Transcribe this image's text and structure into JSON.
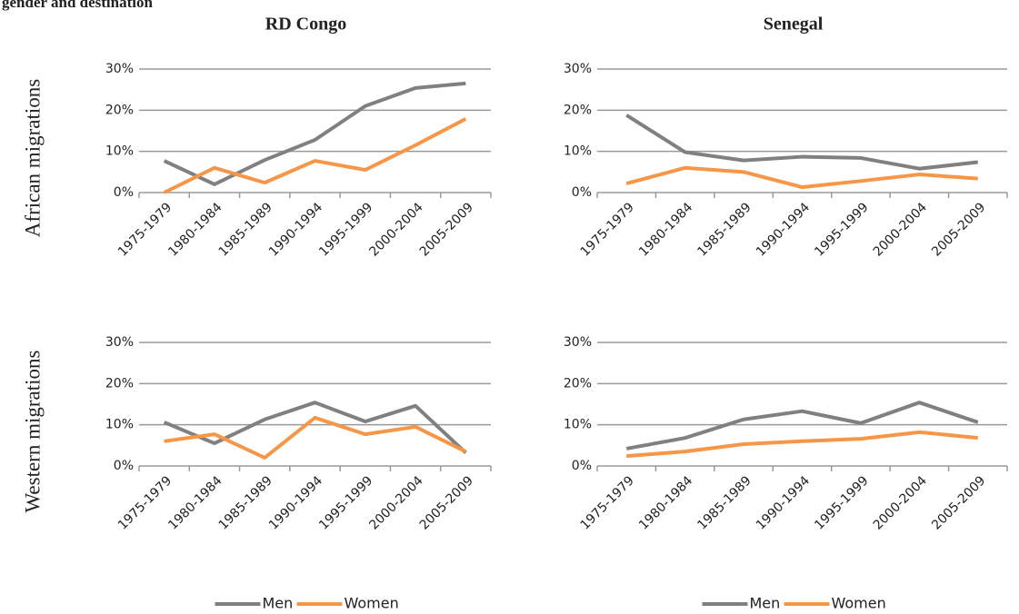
{
  "figure": {
    "title": "gender and destination"
  },
  "chart_data": [
    {
      "type": "line",
      "title": "RD Congo",
      "y_label": "African migrations",
      "categories": [
        "1975-1979",
        "1980-1984",
        "1985-1989",
        "1990-1994",
        "1995-1999",
        "2000-2004",
        "2005-2009"
      ],
      "ylim": [
        0,
        30
      ],
      "yticks": [
        {
          "value": 0,
          "label": "0%"
        },
        {
          "value": 10,
          "label": "10%"
        },
        {
          "value": 20,
          "label": "20%"
        },
        {
          "value": 30,
          "label": "30%"
        }
      ],
      "grid": true,
      "series": [
        {
          "color": "#808080",
          "values": [
            7.7,
            2.0,
            7.9,
            12.8,
            21.0,
            25.4,
            26.5
          ]
        },
        {
          "color": "#f79646",
          "values": [
            0,
            6.0,
            2.4,
            7.7,
            5.5,
            11.5,
            17.9
          ]
        }
      ]
    },
    {
      "type": "line",
      "title": "Senegal",
      "categories": [
        "1975-1979",
        "1980-1984",
        "1985-1989",
        "1990-1994",
        "1995-1999",
        "2000-2004",
        "2005-2009"
      ],
      "ylim": [
        0,
        30
      ],
      "yticks": [
        {
          "value": 0,
          "label": "0%"
        },
        {
          "value": 10,
          "label": "10%"
        },
        {
          "value": 20,
          "label": "20%"
        },
        {
          "value": 30,
          "label": "30%"
        }
      ],
      "grid": true,
      "series": [
        {
          "color": "#808080",
          "values": [
            18.8,
            9.8,
            7.8,
            8.7,
            8.4,
            5.8,
            7.4
          ]
        },
        {
          "color": "#f79646",
          "values": [
            2.2,
            6.0,
            5.0,
            1.3,
            2.8,
            4.4,
            3.4
          ]
        }
      ]
    },
    {
      "type": "line",
      "y_label": "Western migrations",
      "categories": [
        "1975-1979",
        "1980-1984",
        "1985-1989",
        "1990-1994",
        "1995-1999",
        "2000-2004",
        "2005-2009"
      ],
      "ylim": [
        0,
        30
      ],
      "yticks": [
        {
          "value": 0,
          "label": "0%"
        },
        {
          "value": 10,
          "label": "10%"
        },
        {
          "value": 20,
          "label": "20%"
        },
        {
          "value": 30,
          "label": "30%"
        }
      ],
      "grid": true,
      "legend": "bottom",
      "series": [
        {
          "name": "Men",
          "color": "#808080",
          "values": [
            10.6,
            5.5,
            11.3,
            15.4,
            10.8,
            14.6,
            3.2
          ]
        },
        {
          "name": "Women",
          "color": "#f79646",
          "values": [
            6.0,
            7.7,
            2.0,
            11.7,
            7.7,
            9.5,
            3.5
          ]
        }
      ]
    },
    {
      "type": "line",
      "categories": [
        "1975-1979",
        "1980-1984",
        "1985-1989",
        "1990-1994",
        "1995-1999",
        "2000-2004",
        "2005-2009"
      ],
      "ylim": [
        0,
        30
      ],
      "yticks": [
        {
          "value": 0,
          "label": "0%"
        },
        {
          "value": 10,
          "label": "10%"
        },
        {
          "value": 20,
          "label": "20%"
        },
        {
          "value": 30,
          "label": "30%"
        }
      ],
      "grid": true,
      "legend": "bottom",
      "series": [
        {
          "name": "Men",
          "color": "#808080",
          "values": [
            4.2,
            6.8,
            11.3,
            13.3,
            10.4,
            15.4,
            10.6
          ]
        },
        {
          "name": "Women",
          "color": "#f79646",
          "values": [
            2.4,
            3.5,
            5.3,
            6.0,
            6.6,
            8.2,
            6.8
          ]
        }
      ]
    }
  ]
}
